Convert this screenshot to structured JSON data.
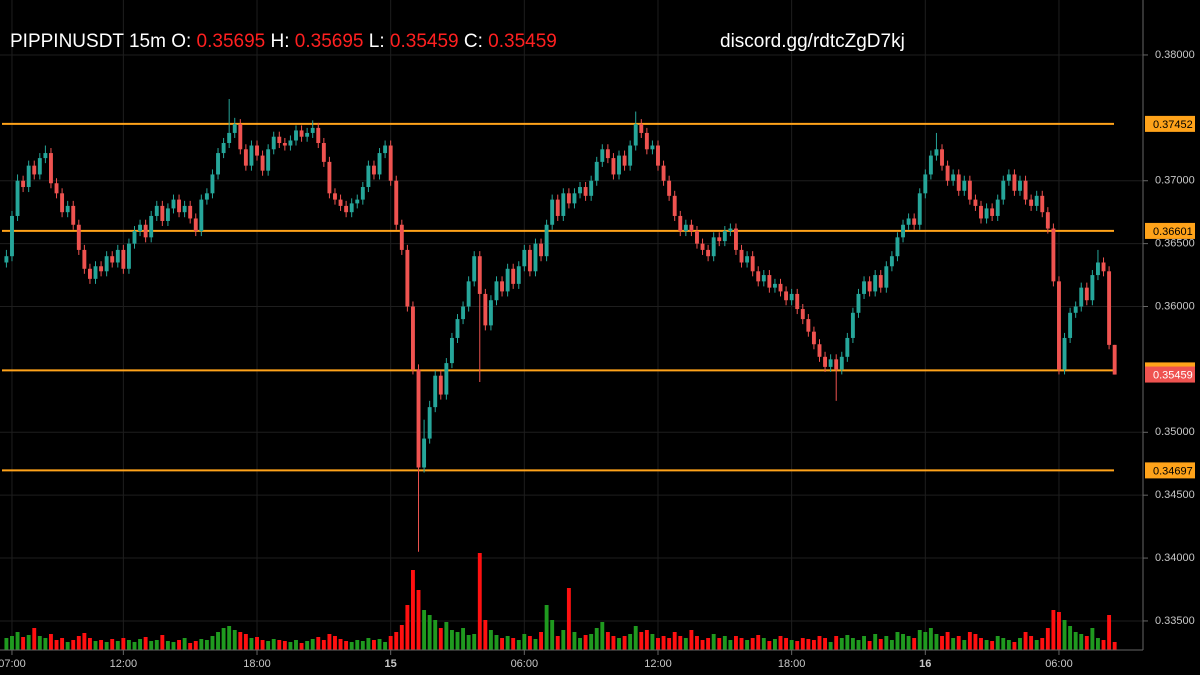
{
  "chart_data": {
    "type": "candlestick",
    "symbol": "PIPPINUSDT 15m",
    "ohlc_labels": [
      "O:",
      "H:",
      "L:",
      "C:"
    ],
    "watermark": "discord.gg/rdtcZgD7kj",
    "up_color": "#26a69a",
    "down_color": "#ef5350",
    "volume_up_color": "#1f9a1f",
    "volume_down_color": "#ff1010",
    "level_color": "#ffa31a",
    "xlim": [
      -1.15,
      199.6
    ],
    "xticks": [
      {
        "value": 1,
        "label": "07:00"
      },
      {
        "value": 21,
        "label": "12:00"
      },
      {
        "value": 45,
        "label": "18:00"
      },
      {
        "value": 69,
        "label": "15"
      },
      {
        "value": 93,
        "label": "06:00"
      },
      {
        "value": 117,
        "label": "12:00"
      },
      {
        "value": 141,
        "label": "18:00"
      },
      {
        "value": 165,
        "label": "16"
      },
      {
        "value": 189,
        "label": "06:00"
      }
    ],
    "ylim": [
      0.33269,
      0.38437
    ],
    "yticks": [
      {
        "value": 0.38,
        "label": "0.38000"
      },
      {
        "value": 0.37,
        "label": "0.37000"
      },
      {
        "value": 0.365,
        "label": "0.36500"
      },
      {
        "value": 0.36,
        "label": "0.36000"
      },
      {
        "value": 0.35,
        "label": "0.35000"
      },
      {
        "value": 0.345,
        "label": "0.34500"
      },
      {
        "value": 0.34,
        "label": "0.34000"
      },
      {
        "value": 0.335,
        "label": "0.33500"
      }
    ],
    "levels": [
      0.37452,
      0.36601,
      0.35492,
      0.34697
    ],
    "volume_lim": [
      0,
      100
    ],
    "open": [
      0.3635,
      0.364,
      0.3672,
      0.37,
      0.3695,
      0.3712,
      0.3705,
      0.3718,
      0.3722,
      0.3698,
      0.369,
      0.3675,
      0.368,
      0.3665,
      0.3645,
      0.363,
      0.3622,
      0.3632,
      0.3628,
      0.364,
      0.3635,
      0.3645,
      0.363,
      0.365,
      0.366,
      0.3665,
      0.3655,
      0.3672,
      0.368,
      0.3668,
      0.3678,
      0.3685,
      0.3675,
      0.368,
      0.367,
      0.366,
      0.3685,
      0.369,
      0.3705,
      0.3722,
      0.373,
      0.3738,
      0.3745,
      0.3725,
      0.3712,
      0.3728,
      0.372,
      0.3708,
      0.3725,
      0.3735,
      0.373,
      0.3728,
      0.3732,
      0.374,
      0.3735,
      0.3738,
      0.3742,
      0.373,
      0.3715,
      0.369,
      0.3685,
      0.368,
      0.3675,
      0.3682,
      0.3685,
      0.3695,
      0.3712,
      0.3705,
      0.3722,
      0.3728,
      0.37,
      0.3665,
      0.3645,
      0.36,
      0.355,
      0.3472,
      0.3495,
      0.352,
      0.3545,
      0.353,
      0.3555,
      0.3575,
      0.359,
      0.36,
      0.362,
      0.364,
      0.361,
      0.3585,
      0.3605,
      0.362,
      0.3612,
      0.363,
      0.3618,
      0.3632,
      0.3645,
      0.3628,
      0.365,
      0.364,
      0.3665,
      0.3685,
      0.3672,
      0.369,
      0.3682,
      0.369,
      0.3695,
      0.3688,
      0.37,
      0.3715,
      0.3725,
      0.3718,
      0.3705,
      0.372,
      0.3712,
      0.3728,
      0.3745,
      0.3738,
      0.3725,
      0.3728,
      0.3712,
      0.37,
      0.3688,
      0.3672,
      0.366,
      0.3665,
      0.366,
      0.365,
      0.3645,
      0.364,
      0.3655,
      0.3652,
      0.366,
      0.3662,
      0.3645,
      0.3635,
      0.364,
      0.3628,
      0.362,
      0.3625,
      0.3615,
      0.3618,
      0.3612,
      0.3605,
      0.361,
      0.3598,
      0.359,
      0.358,
      0.357,
      0.356,
      0.3552,
      0.3558,
      0.355,
      0.356,
      0.3575,
      0.3595,
      0.361,
      0.362,
      0.3612,
      0.3625,
      0.3615,
      0.3632,
      0.364,
      0.3655,
      0.3665,
      0.367,
      0.3665,
      0.369,
      0.3705,
      0.372,
      0.3725,
      0.3712,
      0.37,
      0.3705,
      0.3692,
      0.37,
      0.3685,
      0.368,
      0.367,
      0.3678,
      0.3672,
      0.3685,
      0.37,
      0.3705,
      0.3692,
      0.37,
      0.3685,
      0.368,
      0.3688,
      0.3675,
      0.3662,
      0.362,
      0.355,
      0.3575,
      0.3595,
      0.36,
      0.3615,
      0.3605,
      0.3625,
      0.3635,
      0.3628,
      0.35695
    ],
    "high": [
      0.3645,
      0.3676,
      0.3705,
      0.3704,
      0.3716,
      0.3716,
      0.3722,
      0.3728,
      0.3726,
      0.3702,
      0.3694,
      0.3684,
      0.3684,
      0.3669,
      0.3649,
      0.3634,
      0.3636,
      0.3636,
      0.3644,
      0.3644,
      0.3649,
      0.3649,
      0.3654,
      0.3664,
      0.3669,
      0.3669,
      0.3676,
      0.3684,
      0.3684,
      0.3682,
      0.3689,
      0.3689,
      0.3684,
      0.3684,
      0.3674,
      0.3689,
      0.3694,
      0.3709,
      0.3726,
      0.3734,
      0.3765,
      0.375,
      0.3749,
      0.3729,
      0.3732,
      0.3732,
      0.3724,
      0.3729,
      0.3739,
      0.3739,
      0.3734,
      0.3736,
      0.3744,
      0.3744,
      0.3742,
      0.3748,
      0.3746,
      0.3734,
      0.3719,
      0.3694,
      0.3689,
      0.3684,
      0.3686,
      0.3689,
      0.3699,
      0.3716,
      0.3716,
      0.3726,
      0.3732,
      0.3732,
      0.3704,
      0.3669,
      0.3649,
      0.3604,
      0.3554,
      0.351,
      0.3525,
      0.3549,
      0.3549,
      0.3559,
      0.3579,
      0.3594,
      0.3604,
      0.3624,
      0.3644,
      0.3644,
      0.3614,
      0.3609,
      0.3624,
      0.3624,
      0.3634,
      0.3634,
      0.3636,
      0.3649,
      0.3649,
      0.3654,
      0.3654,
      0.3669,
      0.3689,
      0.3689,
      0.3694,
      0.3694,
      0.3694,
      0.3699,
      0.3699,
      0.3704,
      0.3719,
      0.3729,
      0.3729,
      0.3722,
      0.3724,
      0.3724,
      0.3732,
      0.3755,
      0.3749,
      0.3742,
      0.3732,
      0.3732,
      0.3716,
      0.3704,
      0.3692,
      0.3676,
      0.3669,
      0.3669,
      0.3664,
      0.3654,
      0.3649,
      0.3659,
      0.3659,
      0.3664,
      0.3666,
      0.3666,
      0.3649,
      0.3644,
      0.3644,
      0.3632,
      0.3629,
      0.3629,
      0.3622,
      0.3622,
      0.3616,
      0.3614,
      0.3614,
      0.3602,
      0.3594,
      0.3584,
      0.3574,
      0.3564,
      0.3562,
      0.3562,
      0.3564,
      0.3579,
      0.3599,
      0.3614,
      0.3624,
      0.3624,
      0.3629,
      0.3629,
      0.3636,
      0.3644,
      0.3659,
      0.3669,
      0.3674,
      0.3674,
      0.3694,
      0.3709,
      0.3724,
      0.3738,
      0.3729,
      0.3716,
      0.3709,
      0.3709,
      0.3704,
      0.3704,
      0.3689,
      0.3684,
      0.3682,
      0.3682,
      0.3689,
      0.3704,
      0.3709,
      0.3709,
      0.3704,
      0.3704,
      0.3689,
      0.3692,
      0.3692,
      0.3679,
      0.3666,
      0.3624,
      0.3579,
      0.3599,
      0.3604,
      0.3619,
      0.3619,
      0.3629,
      0.3645,
      0.3639,
      0.3632,
      0.35695
    ],
    "low": [
      0.3631,
      0.3636,
      0.3668,
      0.3691,
      0.3691,
      0.3701,
      0.3701,
      0.3714,
      0.3694,
      0.3686,
      0.3671,
      0.3671,
      0.3661,
      0.3641,
      0.3626,
      0.3618,
      0.3618,
      0.3624,
      0.3624,
      0.3631,
      0.3631,
      0.3626,
      0.3626,
      0.3646,
      0.3656,
      0.3651,
      0.3651,
      0.3668,
      0.3664,
      0.3664,
      0.3674,
      0.3671,
      0.3671,
      0.3666,
      0.3656,
      0.3656,
      0.3681,
      0.3686,
      0.3701,
      0.3718,
      0.3726,
      0.3734,
      0.3721,
      0.3708,
      0.3708,
      0.3716,
      0.3704,
      0.3704,
      0.3721,
      0.3726,
      0.3724,
      0.3724,
      0.3728,
      0.3731,
      0.3731,
      0.3734,
      0.3726,
      0.3711,
      0.3686,
      0.3681,
      0.3676,
      0.3671,
      0.3671,
      0.3678,
      0.3681,
      0.3691,
      0.3701,
      0.3701,
      0.3718,
      0.3696,
      0.3661,
      0.3641,
      0.3596,
      0.3546,
      0.3405,
      0.3468,
      0.3491,
      0.3516,
      0.3526,
      0.3526,
      0.3551,
      0.3571,
      0.3586,
      0.3596,
      0.3616,
      0.354,
      0.3581,
      0.3581,
      0.3601,
      0.3608,
      0.3608,
      0.3614,
      0.3614,
      0.3628,
      0.3624,
      0.3624,
      0.3636,
      0.3636,
      0.3661,
      0.3668,
      0.3668,
      0.3678,
      0.3678,
      0.3686,
      0.3684,
      0.3684,
      0.3696,
      0.3711,
      0.3714,
      0.3701,
      0.3701,
      0.3708,
      0.3708,
      0.3724,
      0.3734,
      0.3721,
      0.3721,
      0.3708,
      0.3696,
      0.3684,
      0.3668,
      0.3656,
      0.3656,
      0.3656,
      0.3646,
      0.3641,
      0.3636,
      0.3636,
      0.3648,
      0.3648,
      0.3656,
      0.3641,
      0.3631,
      0.3631,
      0.3624,
      0.3616,
      0.3616,
      0.3611,
      0.3611,
      0.3608,
      0.3601,
      0.3601,
      0.3594,
      0.3586,
      0.3576,
      0.3566,
      0.3556,
      0.3548,
      0.3548,
      0.3525,
      0.3546,
      0.3556,
      0.3571,
      0.3591,
      0.3606,
      0.3608,
      0.3608,
      0.3611,
      0.3611,
      0.3628,
      0.3636,
      0.3651,
      0.3661,
      0.3661,
      0.3661,
      0.3686,
      0.3701,
      0.3716,
      0.3708,
      0.3696,
      0.3696,
      0.3688,
      0.3688,
      0.3681,
      0.3676,
      0.3666,
      0.3666,
      0.3668,
      0.3668,
      0.3681,
      0.3696,
      0.3688,
      0.3688,
      0.3681,
      0.3676,
      0.3676,
      0.3671,
      0.3658,
      0.3616,
      0.3546,
      0.3546,
      0.3571,
      0.3591,
      0.3596,
      0.3601,
      0.3601,
      0.3621,
      0.3624,
      0.3566,
      0.35459
    ],
    "close": [
      0.364,
      0.3672,
      0.37,
      0.3695,
      0.3712,
      0.3705,
      0.3718,
      0.3722,
      0.3698,
      0.369,
      0.3675,
      0.368,
      0.3665,
      0.3645,
      0.363,
      0.3622,
      0.3632,
      0.3628,
      0.364,
      0.3635,
      0.3645,
      0.363,
      0.365,
      0.366,
      0.3665,
      0.3655,
      0.3672,
      0.368,
      0.3668,
      0.3678,
      0.3685,
      0.3675,
      0.368,
      0.367,
      0.366,
      0.3685,
      0.369,
      0.3705,
      0.3722,
      0.373,
      0.3738,
      0.3745,
      0.3725,
      0.3712,
      0.3728,
      0.372,
      0.3708,
      0.3725,
      0.3735,
      0.373,
      0.3728,
      0.3732,
      0.374,
      0.3735,
      0.3738,
      0.3742,
      0.373,
      0.3715,
      0.369,
      0.3685,
      0.368,
      0.3675,
      0.3682,
      0.3685,
      0.3695,
      0.3712,
      0.3705,
      0.3722,
      0.3728,
      0.37,
      0.3665,
      0.3645,
      0.36,
      0.355,
      0.3472,
      0.3495,
      0.352,
      0.3545,
      0.353,
      0.3555,
      0.3575,
      0.359,
      0.36,
      0.362,
      0.364,
      0.361,
      0.3585,
      0.3605,
      0.362,
      0.3612,
      0.363,
      0.3618,
      0.3632,
      0.3645,
      0.3628,
      0.365,
      0.364,
      0.3665,
      0.3685,
      0.3672,
      0.369,
      0.3682,
      0.369,
      0.3695,
      0.3688,
      0.37,
      0.3715,
      0.3725,
      0.3718,
      0.3705,
      0.372,
      0.3712,
      0.3728,
      0.3745,
      0.3738,
      0.3725,
      0.3728,
      0.3712,
      0.37,
      0.3688,
      0.3672,
      0.366,
      0.3665,
      0.366,
      0.365,
      0.3645,
      0.364,
      0.3655,
      0.3652,
      0.366,
      0.3662,
      0.3645,
      0.3635,
      0.364,
      0.3628,
      0.362,
      0.3625,
      0.3615,
      0.3618,
      0.3612,
      0.3605,
      0.361,
      0.3598,
      0.359,
      0.358,
      0.357,
      0.356,
      0.3552,
      0.3558,
      0.355,
      0.356,
      0.3575,
      0.3595,
      0.361,
      0.362,
      0.3612,
      0.3625,
      0.3615,
      0.3632,
      0.364,
      0.3655,
      0.3665,
      0.367,
      0.3665,
      0.369,
      0.3705,
      0.372,
      0.3725,
      0.3712,
      0.37,
      0.3705,
      0.3692,
      0.37,
      0.3685,
      0.368,
      0.367,
      0.3678,
      0.3672,
      0.3685,
      0.37,
      0.3705,
      0.3692,
      0.37,
      0.3685,
      0.368,
      0.3688,
      0.3675,
      0.3662,
      0.362,
      0.355,
      0.3575,
      0.3595,
      0.36,
      0.3615,
      0.3605,
      0.3625,
      0.3635,
      0.3628,
      0.35695,
      0.35459
    ],
    "volume": [
      12,
      14,
      18,
      13,
      15,
      22,
      14,
      12,
      16,
      10,
      12,
      8,
      10,
      14,
      17,
      12,
      9,
      10,
      8,
      11,
      9,
      12,
      10,
      8,
      11,
      13,
      9,
      10,
      15,
      9,
      8,
      10,
      12,
      7,
      9,
      11,
      10,
      14,
      18,
      22,
      24,
      20,
      18,
      16,
      12,
      13,
      10,
      9,
      11,
      10,
      9,
      8,
      10,
      7,
      9,
      11,
      13,
      10,
      16,
      14,
      11,
      9,
      8,
      10,
      9,
      12,
      10,
      11,
      8,
      14,
      18,
      25,
      45,
      80,
      60,
      40,
      35,
      30,
      22,
      28,
      20,
      18,
      22,
      15,
      16,
      97,
      30,
      20,
      15,
      12,
      14,
      12,
      10,
      16,
      14,
      11,
      18,
      45,
      30,
      14,
      20,
      62,
      18,
      12,
      15,
      16,
      22,
      28,
      18,
      14,
      12,
      14,
      16,
      24,
      18,
      20,
      16,
      12,
      14,
      12,
      18,
      14,
      12,
      20,
      14,
      10,
      12,
      16,
      12,
      14,
      10,
      14,
      12,
      10,
      12,
      15,
      12,
      9,
      11,
      14,
      12,
      10,
      9,
      12,
      11,
      10,
      14,
      12,
      8,
      14,
      12,
      15,
      12,
      10,
      14,
      9,
      16,
      11,
      14,
      10,
      18,
      16,
      14,
      12,
      20,
      18,
      22,
      16,
      14,
      18,
      12,
      14,
      10,
      18,
      16,
      12,
      10,
      9,
      14,
      12,
      10,
      8,
      12,
      18,
      14,
      10,
      12,
      22,
      40,
      38,
      30,
      24,
      18,
      16,
      14,
      22,
      12,
      10,
      35,
      8
    ]
  }
}
